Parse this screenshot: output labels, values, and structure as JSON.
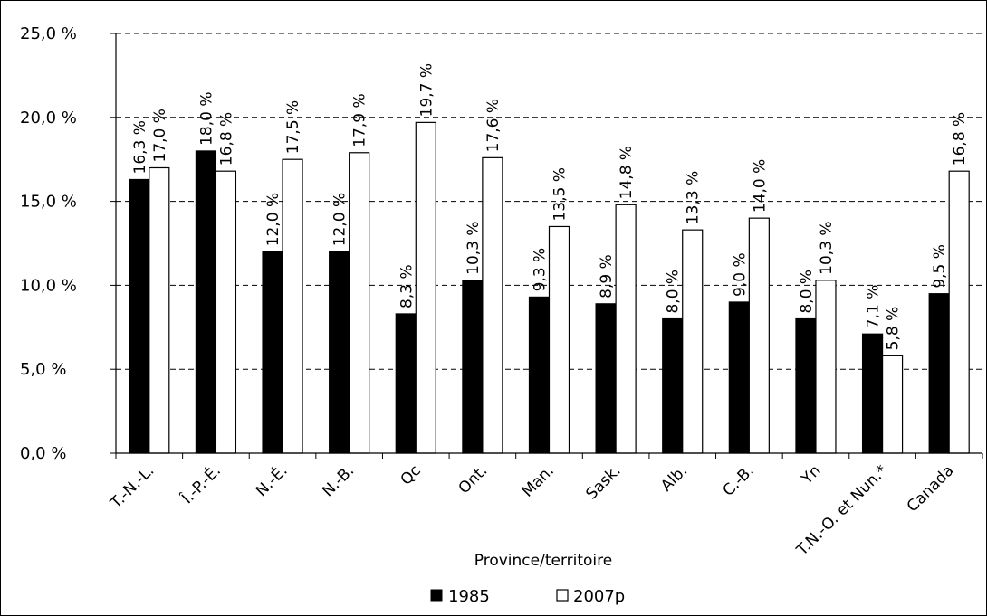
{
  "chart_data": {
    "type": "bar",
    "xlabel": "Province/territoire",
    "ylabel": "",
    "ylim": [
      0,
      25
    ],
    "y_ticks": [
      "0,0 %",
      "5,0 %",
      "10,0 %",
      "15,0 %",
      "20,0 %",
      "25,0 %"
    ],
    "y_tick_values": [
      0,
      5,
      10,
      15,
      20,
      25
    ],
    "grid": "horizontal dashed",
    "legend_position": "bottom",
    "categories": [
      "T.-N.-L.",
      "Î.-P.-É.",
      "N.-É.",
      "N.-B.",
      "Qc",
      "Ont.",
      "Man.",
      "Sask.",
      "Alb.",
      "C.-B.",
      "Yn",
      "T.N.-O. et Nun.*",
      "Canada"
    ],
    "series": [
      {
        "name": "1985",
        "color": "#000000",
        "values": [
          16.3,
          18.0,
          12.0,
          12.0,
          8.3,
          10.3,
          9.3,
          8.9,
          8.0,
          9.0,
          8.0,
          7.1,
          9.5
        ],
        "labels": [
          "16,3 %",
          "18,0 %",
          "12,0 %",
          "12,0 %",
          "8,3 %",
          "10,3 %",
          "9,3 %",
          "8,9 %",
          "8,0 %",
          "9,0 %",
          "8,0 %",
          "7,1 %",
          "9,5 %"
        ]
      },
      {
        "name": "2007p",
        "color": "#ffffff",
        "values": [
          17.0,
          16.8,
          17.5,
          17.9,
          19.7,
          17.6,
          13.5,
          14.8,
          13.3,
          14.0,
          10.3,
          5.8,
          16.8
        ],
        "labels": [
          "17,0 %",
          "16,8 %",
          "17,5 %",
          "17,9 %",
          "19,7 %",
          "17,6 %",
          "13,5 %",
          "14,8 %",
          "13,3 %",
          "14,0 %",
          "10,3 %",
          "5,8 %",
          "16,8 %"
        ]
      }
    ]
  }
}
